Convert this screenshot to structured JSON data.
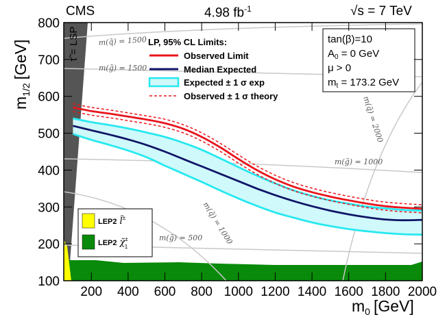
{
  "header": {
    "experiment": "CMS",
    "lumi": "4.98 fb",
    "lumi_exp": "-1",
    "energy_prefix": "√s = 7 TeV"
  },
  "chart_data": {
    "type": "line",
    "xlabel": "m",
    "xlabel_sub": "0",
    "xlabel_unit": "[GeV]",
    "ylabel": "m",
    "ylabel_sub": "1/2",
    "ylabel_unit": "[GeV]",
    "xlim": [
      50,
      2000
    ],
    "ylim": [
      100,
      800
    ],
    "xticks": [
      200,
      400,
      600,
      800,
      1000,
      1200,
      1400,
      1600,
      1800,
      2000
    ],
    "yticks": [
      100,
      200,
      300,
      400,
      500,
      600,
      700,
      800
    ],
    "x": [
      100,
      200,
      300,
      400,
      500,
      600,
      700,
      800,
      900,
      1000,
      1100,
      1200,
      1300,
      1400,
      1500,
      1600,
      1700,
      1800,
      1900,
      2000
    ],
    "series": [
      {
        "name": "Observed Limit",
        "color": "#e8141b",
        "values": [
          570,
          560,
          553,
          545,
          537,
          527,
          512,
          490,
          462,
          430,
          400,
          375,
          355,
          340,
          328,
          318,
          309,
          302,
          298,
          295
        ]
      },
      {
        "name": "Observed ± 1 σ theory (up)",
        "color": "#e8141b",
        "dashed": true,
        "values": [
          580,
          570,
          563,
          555,
          547,
          538,
          523,
          501,
          473,
          441,
          411,
          386,
          366,
          351,
          339,
          329,
          320,
          313,
          309,
          306
        ]
      },
      {
        "name": "Observed ± 1 σ theory (down)",
        "color": "#e8141b",
        "dashed": true,
        "values": [
          559,
          549,
          542,
          534,
          526,
          516,
          501,
          479,
          451,
          419,
          389,
          364,
          344,
          329,
          317,
          307,
          298,
          291,
          287,
          284
        ]
      },
      {
        "name": "Median Expected",
        "color": "#0f1466",
        "values": [
          520,
          508,
          496,
          483,
          468,
          450,
          430,
          410,
          390,
          370,
          350,
          332,
          316,
          302,
          290,
          280,
          272,
          266,
          264,
          265
        ]
      },
      {
        "name": "Expected ± 1 σ exp (up)",
        "color": "#27e8f0",
        "values": [
          540,
          530,
          522,
          513,
          502,
          490,
          474,
          455,
          432,
          408,
          385,
          364,
          345,
          330,
          318,
          309,
          301,
          296,
          292,
          290
        ]
      },
      {
        "name": "Expected ± 1 σ exp (down)",
        "color": "#27e8f0",
        "values": [
          498,
          482,
          468,
          453,
          435,
          412,
          390,
          368,
          345,
          323,
          303,
          285,
          271,
          258,
          248,
          240,
          234,
          229,
          226,
          225
        ]
      }
    ],
    "band_fill": "#cff9fb",
    "legend": {
      "title": "LP, 95% CL Limits:",
      "entries": [
        "Observed Limit",
        "Median Expected",
        "Expected ± 1 σ exp",
        "Observed ± 1 σ theory"
      ]
    },
    "parameters": [
      "tan(β)=10",
      "A",
      "0",
      " = 0 GeV",
      "μ > 0",
      "m",
      "t",
      " = 173.2 GeV"
    ],
    "region_labels": {
      "stau_lsp": "τ̃ = LSP",
      "lep2_slepton": "LEP2",
      "lep2_chargino": "LEP2",
      "slepton_sym": "l̃",
      "slepton_sup": "±",
      "chargino_sym": "χ̃",
      "chargino_sup": "±",
      "chargino_sub": "1"
    },
    "contours": {
      "squark_1500": "m(q̃) = 1500",
      "gluino_1500": "m(g̃) = 1500",
      "squark_2000": "m(q̃) = 2000",
      "gluino_1000": "m(g̃) = 1000",
      "squark_1000": "m(q̃) = 1000",
      "gluino_500": "m(g̃) = 500"
    },
    "colors": {
      "lep_slepton": "#ffff00",
      "lep_chargino": "#0a8a0a",
      "stau_region": "#555555"
    }
  }
}
